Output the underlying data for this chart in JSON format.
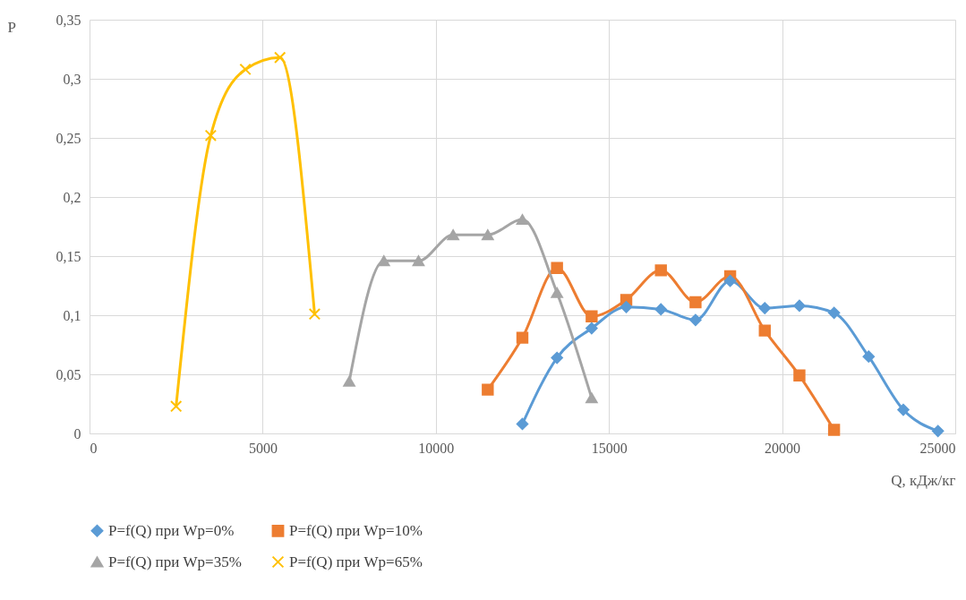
{
  "chart_data": {
    "type": "line",
    "xlabel": "Q, кДж/кг",
    "ylabel": "P",
    "xlim": [
      0,
      25000
    ],
    "xticks": [
      0,
      5000,
      10000,
      15000,
      20000,
      25000
    ],
    "ylim": [
      0,
      0.35
    ],
    "yticks": [
      {
        "value": 0,
        "label": "0"
      },
      {
        "value": 0.05,
        "label": "0,05"
      },
      {
        "value": 0.1,
        "label": "0,1"
      },
      {
        "value": 0.15,
        "label": "0,15"
      },
      {
        "value": 0.2,
        "label": "0,2"
      },
      {
        "value": 0.25,
        "label": "0,25"
      },
      {
        "value": 0.3,
        "label": "0,3"
      },
      {
        "value": 0.35,
        "label": "0,35"
      }
    ],
    "grid": true,
    "legend": "bottom",
    "series": [
      {
        "name": "P=f(Q) при Wp=0%",
        "color": "#5b9bd5",
        "marker": "diamond",
        "x": [
          12500,
          13500,
          14500,
          15500,
          16500,
          17500,
          18500,
          19500,
          20500,
          21500,
          22500,
          23500,
          24500
        ],
        "values": [
          0.008,
          0.064,
          0.089,
          0.107,
          0.105,
          0.096,
          0.129,
          0.106,
          0.108,
          0.102,
          0.065,
          0.02,
          0.002
        ]
      },
      {
        "name": "P=f(Q) при Wp=10%",
        "color": "#ed7d31",
        "marker": "square",
        "x": [
          11500,
          12500,
          13500,
          14500,
          15500,
          16500,
          17500,
          18500,
          19500,
          20500,
          21500
        ],
        "values": [
          0.037,
          0.081,
          0.14,
          0.099,
          0.113,
          0.138,
          0.111,
          0.133,
          0.087,
          0.049,
          0.003
        ]
      },
      {
        "name": "P=f(Q) при Wp=35%",
        "color": "#a5a5a5",
        "marker": "triangle",
        "x": [
          7500,
          8500,
          9500,
          10500,
          11500,
          12500,
          13500,
          14500
        ],
        "values": [
          0.044,
          0.146,
          0.146,
          0.168,
          0.168,
          0.181,
          0.119,
          0.03
        ]
      },
      {
        "name": "P=f(Q) при Wp=65%",
        "color": "#ffc000",
        "marker": "cross",
        "x": [
          2500,
          3500,
          4500,
          5500,
          6500
        ],
        "values": [
          0.023,
          0.252,
          0.308,
          0.318,
          0.101
        ]
      }
    ]
  }
}
